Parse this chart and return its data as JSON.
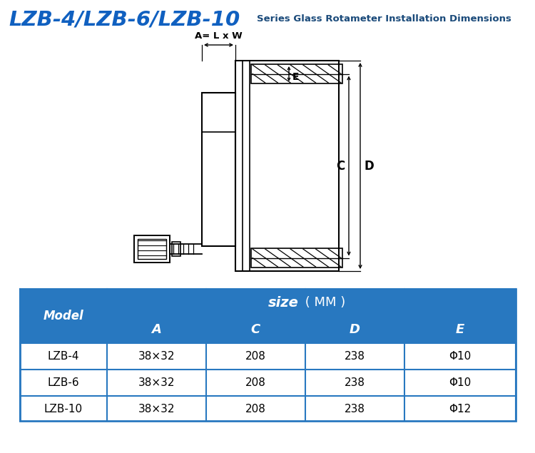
{
  "title_left": "LZB-4/LZB-6/LZB-10",
  "title_right": "Series Glass Rotameter Installation Dimensions",
  "title_left_color": "#1060C0",
  "title_right_color": "#1a4a7a",
  "bg_color": "#ffffff",
  "table_header_bg": "#2878c0",
  "table_border_color": "#2878c0",
  "table_models": [
    "LZB-4",
    "LZB-6",
    "LZB-10"
  ],
  "table_A": [
    "38×32",
    "38×32",
    "38×32"
  ],
  "table_C": [
    "208",
    "208",
    "208"
  ],
  "table_D": [
    "238",
    "238",
    "238"
  ],
  "table_E": [
    "Φ10",
    "Φ10",
    "Φ12"
  ],
  "line_color": "#000000"
}
